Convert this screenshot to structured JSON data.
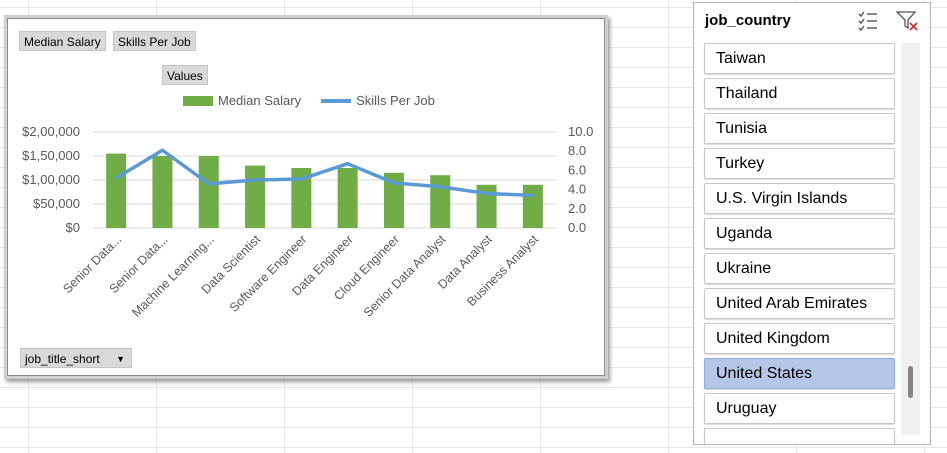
{
  "chart": {
    "buttons": {
      "median_salary": "Median Salary",
      "skills_per_job": "Skills Per Job",
      "values": "Values",
      "row_field": "job_title_short"
    },
    "legend": {
      "bar_label": "Median Salary",
      "line_label": "Skills Per Job"
    }
  },
  "chart_data": {
    "type": "bar",
    "categories": [
      "Senior Data...",
      "Senior Data...",
      "Machine Learning...",
      "Data Scientist",
      "Software Engineer",
      "Data Engineer",
      "Cloud Engineer",
      "Senior Data Analyst",
      "Data Analyst",
      "Business Analyst"
    ],
    "series": [
      {
        "name": "Median Salary",
        "type": "bar",
        "axis": "left",
        "color": "#70ad47",
        "values": [
          155000,
          150000,
          150000,
          130000,
          125000,
          125000,
          115000,
          110000,
          90000,
          90000
        ]
      },
      {
        "name": "Skills Per Job",
        "type": "line",
        "axis": "right",
        "color": "#5b9bd5",
        "values": [
          5.2,
          8.1,
          4.6,
          5.0,
          5.1,
          6.7,
          4.7,
          4.3,
          3.6,
          3.4
        ]
      }
    ],
    "y_left": {
      "ylim": [
        0,
        200000
      ],
      "ticks": [
        0,
        50000,
        100000,
        150000,
        200000
      ],
      "tick_labels": [
        "$0",
        "$50,000",
        "$1,00,000",
        "$1,50,000",
        "$2,00,000"
      ]
    },
    "y_right": {
      "ylim": [
        0,
        10
      ],
      "ticks": [
        0,
        2,
        4,
        6,
        8,
        10
      ],
      "tick_labels": [
        "0.0",
        "2.0",
        "4.0",
        "6.0",
        "8.0",
        "10.0"
      ]
    },
    "grid": true,
    "legend": "top"
  },
  "slicer": {
    "title": "job_country",
    "items": [
      {
        "label": "Taiwan",
        "selected": false
      },
      {
        "label": "Thailand",
        "selected": false
      },
      {
        "label": "Tunisia",
        "selected": false
      },
      {
        "label": "Turkey",
        "selected": false
      },
      {
        "label": "U.S. Virgin Islands",
        "selected": false
      },
      {
        "label": "Uganda",
        "selected": false
      },
      {
        "label": "Ukraine",
        "selected": false
      },
      {
        "label": "United Arab Emirates",
        "selected": false
      },
      {
        "label": "United Kingdom",
        "selected": false
      },
      {
        "label": "United States",
        "selected": true
      },
      {
        "label": "Uruguay",
        "selected": false
      },
      {
        "label": "",
        "selected": false
      }
    ],
    "icons": {
      "multiselect": "multi-select-icon",
      "clear": "clear-filter-icon"
    }
  }
}
